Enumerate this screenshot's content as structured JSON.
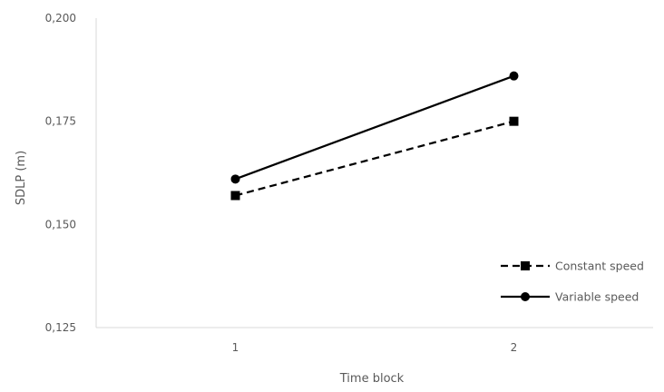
{
  "chart_data": {
    "type": "line",
    "title": "",
    "xlabel": "Time block",
    "ylabel": "SDLP (m)",
    "categories": [
      "1",
      "2"
    ],
    "ylim": [
      0.125,
      0.2
    ],
    "yticks": [
      "0,125",
      "0,150",
      "0,175",
      "0,200"
    ],
    "ytick_values": [
      0.125,
      0.15,
      0.175,
      0.2
    ],
    "grid": false,
    "legend_position": "bottom-right",
    "series": [
      {
        "name": "Constant speed",
        "values": [
          0.157,
          0.175
        ],
        "line_style": "dashed",
        "marker": "square",
        "color": "#000000"
      },
      {
        "name": "Variable speed",
        "values": [
          0.161,
          0.186
        ],
        "line_style": "solid",
        "marker": "circle",
        "color": "#000000"
      }
    ]
  }
}
